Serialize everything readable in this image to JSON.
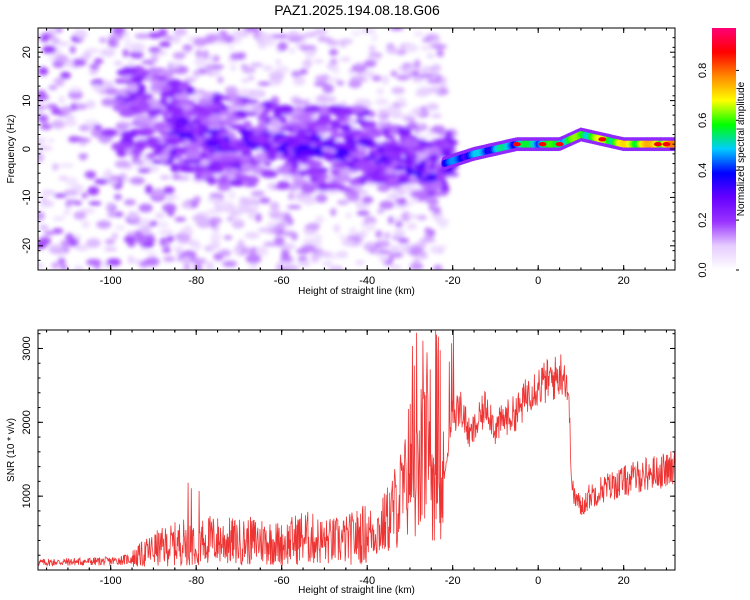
{
  "chart_data": [
    {
      "type": "heatmap",
      "title": "PAZ1.2025.194.08.18.G06",
      "xlabel": "Height of straight line (km)",
      "ylabel": "Frequency (Hz)",
      "xlim": [
        -117,
        32
      ],
      "ylim": [
        -25,
        25
      ],
      "xticks": [
        -100,
        -80,
        -60,
        -40,
        -20,
        0,
        20
      ],
      "yticks": [
        -20,
        -10,
        0,
        10,
        20
      ],
      "colorbar": {
        "label": "Normalized spectral amplitude",
        "range": [
          0.0,
          0.97
        ],
        "ticks": [
          0.0,
          0.2,
          0.4,
          0.6,
          0.8
        ],
        "colormap": [
          "#ffffff",
          "#e6ccff",
          "#9933ff",
          "#6600ff",
          "#0000ff",
          "#00ccff",
          "#00ff00",
          "#ffff00",
          "#ff8800",
          "#ff0000",
          "#ff0077"
        ]
      },
      "ridge": [
        {
          "x": -95,
          "y": 8
        },
        {
          "x": -85,
          "y": 5
        },
        {
          "x": -75,
          "y": 2
        },
        {
          "x": -60,
          "y": 1
        },
        {
          "x": -45,
          "y": 0
        },
        {
          "x": -35,
          "y": -1
        },
        {
          "x": -25,
          "y": -5
        },
        {
          "x": -22,
          "y": -3
        },
        {
          "x": -15,
          "y": -1
        },
        {
          "x": -5,
          "y": 1
        },
        {
          "x": 5,
          "y": 1
        },
        {
          "x": 10,
          "y": 3
        },
        {
          "x": 20,
          "y": 1
        },
        {
          "x": 32,
          "y": 1
        }
      ]
    },
    {
      "type": "line",
      "title": "",
      "xlabel": "Height of straight line (km)",
      "ylabel": "SNR (10 * v/v)",
      "xlim": [
        -117,
        32
      ],
      "ylim": [
        0,
        3250
      ],
      "xticks": [
        -100,
        -80,
        -60,
        -40,
        -20,
        0,
        20
      ],
      "yticks": [
        1000,
        2000,
        3000
      ],
      "line_color": "#ee3333",
      "series": [
        {
          "x": [
            -117,
            -110,
            -100,
            -95,
            -90,
            -85,
            -80,
            -75,
            -70,
            -65,
            -60,
            -55,
            -50,
            -45,
            -40,
            -37,
            -35,
            -33,
            -31,
            -30,
            -28,
            -27,
            -25,
            -23,
            -22,
            -21,
            -20,
            -18,
            -16,
            -14,
            -12,
            -10,
            -8,
            -6,
            -4,
            -2,
            0,
            2,
            4,
            6,
            7,
            8,
            9,
            10,
            12,
            15,
            20,
            25,
            30,
            32
          ],
          "y": [
            100,
            110,
            120,
            150,
            280,
            350,
            420,
            400,
            380,
            400,
            350,
            450,
            380,
            400,
            500,
            550,
            700,
            900,
            1100,
            1500,
            1100,
            1700,
            1400,
            900,
            1200,
            1800,
            2100,
            2200,
            1800,
            2000,
            2250,
            1900,
            2050,
            2100,
            2200,
            2450,
            2500,
            2550,
            2600,
            2700,
            2450,
            1050,
            950,
            850,
            1000,
            1100,
            1200,
            1300,
            1350,
            1380
          ]
        }
      ]
    }
  ]
}
